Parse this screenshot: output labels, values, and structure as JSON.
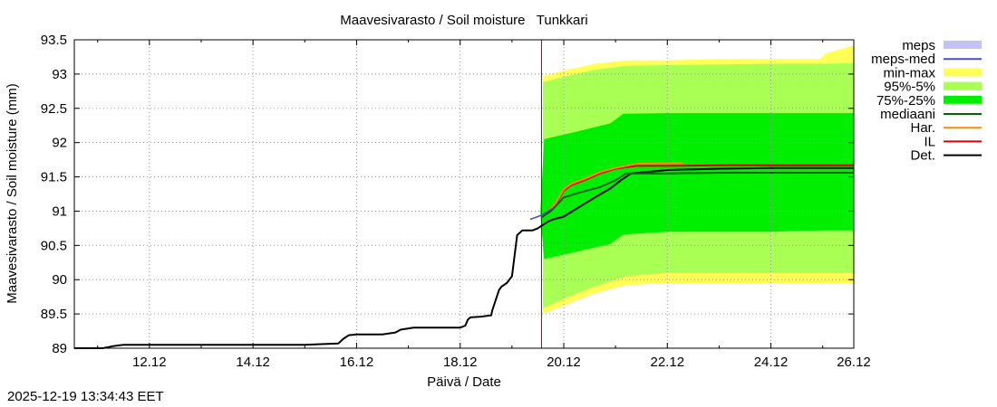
{
  "chart_data": {
    "type": "area",
    "title": "Maavesivarasto / Soil moisture   Tunkkari",
    "xlabel": "Päivä / Date",
    "ylabel": "Maavesivarasto / Soil moisture (mm)",
    "x_unit": "days since 11.12 00:00",
    "xlim": [
      -0.45,
      14.6
    ],
    "ylim": [
      89,
      93.5
    ],
    "y_ticks": [
      89,
      89.5,
      90,
      90.5,
      91,
      91.5,
      92,
      92.5,
      93,
      93.5
    ],
    "y_tick_labels": [
      "89",
      "89.5",
      "90",
      "90.5",
      "91",
      "91.5",
      "92",
      "92.5",
      "93",
      "93.5"
    ],
    "x_ticks": [
      1,
      3,
      5,
      7,
      9,
      11,
      13,
      15
    ],
    "x_tick_labels": [
      "12.12",
      "14.12",
      "16.12",
      "18.12",
      "20.12",
      "22.12",
      "24.12",
      "26.12"
    ],
    "forecast_start_x": 8.57,
    "legend_position": "outside-right",
    "legend": [
      {
        "label": "meps",
        "kind": "box",
        "color": "#c3c3f7"
      },
      {
        "label": "meps-med",
        "kind": "line",
        "color": "#4b4bc8"
      },
      {
        "label": "min-max",
        "kind": "box",
        "color": "#ffff55"
      },
      {
        "label": "95%-5%",
        "kind": "box",
        "color": "#aaff55"
      },
      {
        "label": "75%-25%",
        "kind": "box",
        "color": "#00ee00"
      },
      {
        "label": "mediaani",
        "kind": "line",
        "color": "#006400"
      },
      {
        "label": "Har.",
        "kind": "line",
        "color": "#ff8c00"
      },
      {
        "label": "IL",
        "kind": "line",
        "color": "#dd0000"
      },
      {
        "label": "Det.",
        "kind": "line",
        "color": "#000000"
      }
    ],
    "bands": [
      {
        "name": "min-max",
        "color": "#ffff55",
        "x": [
          8.6,
          9.0,
          9.6,
          10.2,
          11.0,
          12.0,
          13.0,
          13.95,
          14.05,
          14.6
        ],
        "low": [
          89.5,
          89.62,
          89.8,
          89.92,
          89.95,
          89.95,
          89.95,
          89.95,
          89.95,
          89.95
        ],
        "high": [
          92.97,
          93.05,
          93.15,
          93.2,
          93.2,
          93.22,
          93.22,
          93.22,
          93.3,
          93.42
        ]
      },
      {
        "name": "95%-5%",
        "color": "#aaff55",
        "x": [
          8.6,
          9.0,
          9.6,
          10.2,
          11.0,
          12.0,
          13.0,
          14.0,
          14.6
        ],
        "low": [
          89.58,
          89.72,
          89.9,
          90.05,
          90.1,
          90.1,
          90.1,
          90.1,
          90.1
        ],
        "high": [
          92.88,
          92.96,
          93.06,
          93.12,
          93.13,
          93.14,
          93.15,
          93.15,
          93.16
        ]
      },
      {
        "name": "75%-25%",
        "color": "#00ee00",
        "x": [
          8.55,
          8.62,
          9.2,
          9.9,
          10.15,
          11.0,
          12.0,
          13.0,
          14.0,
          14.6
        ],
        "low": [
          90.95,
          90.3,
          90.4,
          90.52,
          90.66,
          90.7,
          90.7,
          90.7,
          90.72,
          90.72
        ],
        "high": [
          91.0,
          92.05,
          92.15,
          92.28,
          92.42,
          92.43,
          92.43,
          92.43,
          92.43,
          92.43
        ]
      }
    ],
    "series": [
      {
        "name": "Det.",
        "color": "#000000",
        "width": 2,
        "x": [
          -0.45,
          0.1,
          0.3,
          0.5,
          1.0,
          2.0,
          3.0,
          4.0,
          4.65,
          4.75,
          4.85,
          5.0,
          5.5,
          5.75,
          5.85,
          6.1,
          6.3,
          6.6,
          7.0,
          7.1,
          7.15,
          7.2,
          7.4,
          7.6,
          7.62,
          7.75,
          7.8,
          7.9,
          8.0,
          8.05,
          8.1,
          8.2,
          8.25,
          8.4,
          8.5,
          8.6,
          8.7,
          8.8,
          9.0,
          9.3,
          9.6,
          9.9,
          10.1,
          10.3,
          11.0,
          12.0,
          13.0,
          14.6
        ],
        "y": [
          89.0,
          89.0,
          89.03,
          89.05,
          89.05,
          89.05,
          89.05,
          89.05,
          89.07,
          89.14,
          89.19,
          89.2,
          89.2,
          89.23,
          89.27,
          89.3,
          89.3,
          89.3,
          89.3,
          89.33,
          89.42,
          89.45,
          89.46,
          89.48,
          89.55,
          89.85,
          89.9,
          89.95,
          90.05,
          90.35,
          90.65,
          90.72,
          90.72,
          90.72,
          90.75,
          90.8,
          90.85,
          90.88,
          90.92,
          91.06,
          91.2,
          91.33,
          91.45,
          91.55,
          91.6,
          91.62,
          91.63,
          91.63
        ]
      },
      {
        "name": "IL",
        "color": "#dd0000",
        "width": 2,
        "x": [
          8.57,
          8.7,
          8.85,
          9.0,
          9.15,
          9.4,
          9.7,
          10.0,
          10.4,
          11.0,
          12.0,
          13.0,
          14.6
        ],
        "y": [
          90.91,
          90.98,
          91.1,
          91.3,
          91.38,
          91.45,
          91.55,
          91.62,
          91.66,
          91.66,
          91.67,
          91.67,
          91.67
        ]
      },
      {
        "name": "Har.",
        "color": "#ff8c00",
        "width": 2,
        "x": [
          8.57,
          8.7,
          8.85,
          9.0,
          9.15,
          9.4,
          9.7,
          10.0,
          10.4,
          11.0,
          11.3
        ],
        "y": [
          90.91,
          91.0,
          91.12,
          91.32,
          91.4,
          91.47,
          91.57,
          91.63,
          91.69,
          91.7,
          91.7
        ]
      },
      {
        "name": "mediaani",
        "color": "#006400",
        "width": 2,
        "x": [
          8.57,
          8.75,
          9.0,
          9.3,
          9.7,
          10.0,
          10.2,
          10.5,
          11.0,
          12.0,
          13.0,
          14.6
        ],
        "y": [
          90.91,
          91.0,
          91.2,
          91.27,
          91.35,
          91.45,
          91.55,
          91.55,
          91.55,
          91.56,
          91.56,
          91.56
        ]
      },
      {
        "name": "meps-med",
        "color": "#4b4bc8",
        "width": 1.5,
        "x": [
          8.35,
          8.5,
          8.6,
          8.7,
          8.8
        ],
        "y": [
          90.88,
          90.92,
          90.95,
          91.0,
          91.05
        ]
      }
    ]
  },
  "footer": {
    "timestamp": "2025-12-19 13:34:43 EET"
  }
}
